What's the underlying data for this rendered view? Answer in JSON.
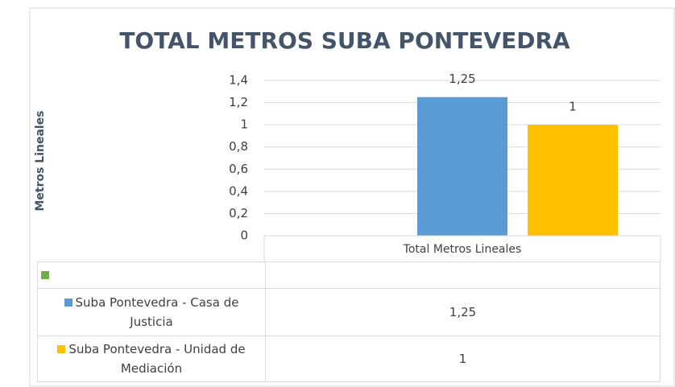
{
  "chart_data": {
    "type": "bar",
    "title": "TOTAL METROS SUBA PONTEVEDRA",
    "y_label": "Metros Lineales",
    "categories": [
      "Total Metros Lineales"
    ],
    "series": [
      {
        "name": null,
        "color": "#70ad47",
        "values": [
          null
        ]
      },
      {
        "name": "Suba Pontevedra  - Casa de Justicia",
        "color": "#5b9bd5",
        "values": [
          1.25
        ],
        "value_labels": [
          "1,25"
        ]
      },
      {
        "name": "Suba Pontevedra - Unidad de Mediación",
        "color": "#ffc000",
        "values": [
          1
        ]
      }
    ],
    "ylim": [
      0,
      1.4
    ],
    "yticks": [
      0,
      {
        "value": 0.2,
        "label": "0,2"
      },
      {
        "value": 0.4,
        "label": "0,4"
      },
      {
        "value": 0.6,
        "label": "0,6"
      },
      {
        "value": 0.8,
        "label": "0,8"
      },
      1,
      {
        "value": 1.2,
        "label": "1,2"
      },
      {
        "value": 1.4,
        "label": "1,4"
      }
    ],
    "grid": true,
    "data_table": true
  }
}
